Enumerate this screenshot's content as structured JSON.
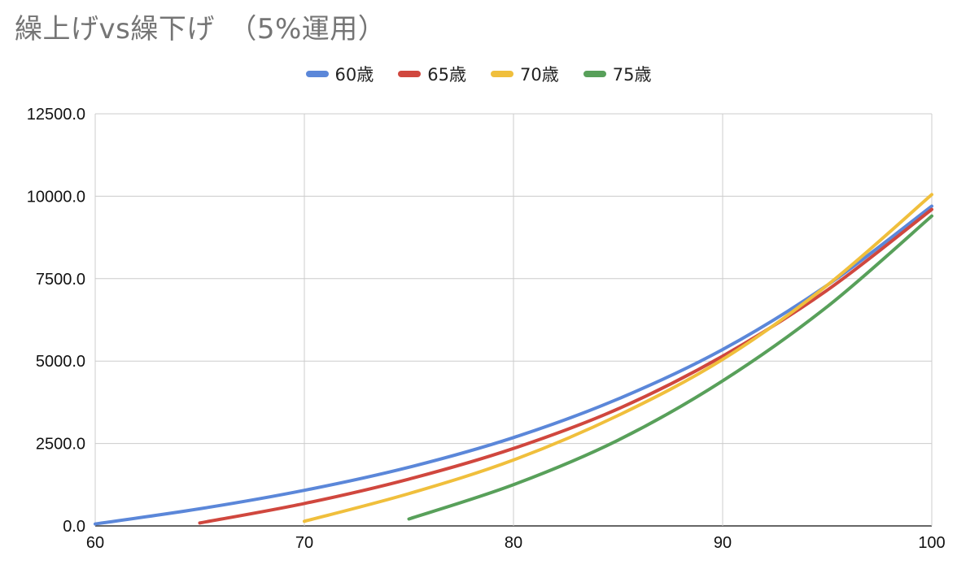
{
  "title": "繰上げvs繰下げ　（5%運用）",
  "colors": {
    "60": "#5b87d9",
    "65": "#d0473e",
    "70": "#f0bf3c",
    "75": "#58a05a"
  },
  "chart_data": {
    "type": "line",
    "title": "繰上げvs繰下げ　（5%運用）",
    "xlabel": "",
    "ylabel": "",
    "xlim": [
      60,
      100
    ],
    "ylim": [
      0,
      12500
    ],
    "x_ticks": [
      "60",
      "70",
      "80",
      "90",
      "100"
    ],
    "y_ticks": [
      "0.0",
      "2500.0",
      "5000.0",
      "7500.0",
      "10000.0",
      "12500.0"
    ],
    "grid": true,
    "legend_position": "top-center",
    "series": [
      {
        "name": "60歳",
        "color": "#5b87d9",
        "x": [
          60,
          65,
          70,
          75,
          80,
          85,
          90,
          95,
          100
        ],
        "y": [
          60,
          520,
          1080,
          1780,
          2680,
          3850,
          5350,
          7300,
          9700
        ]
      },
      {
        "name": "65歳",
        "color": "#d0473e",
        "x": [
          65,
          70,
          75,
          80,
          85,
          90,
          95,
          100
        ],
        "y": [
          90,
          680,
          1420,
          2350,
          3550,
          5150,
          7150,
          9600
        ]
      },
      {
        "name": "70歳",
        "color": "#f0bf3c",
        "x": [
          70,
          75,
          80,
          85,
          90,
          95,
          100
        ],
        "y": [
          140,
          980,
          2000,
          3350,
          5050,
          7300,
          10050
        ]
      },
      {
        "name": "75歳",
        "color": "#58a05a",
        "x": [
          75,
          80,
          85,
          90,
          95,
          100
        ],
        "y": [
          210,
          1250,
          2600,
          4400,
          6650,
          9400
        ]
      }
    ]
  }
}
